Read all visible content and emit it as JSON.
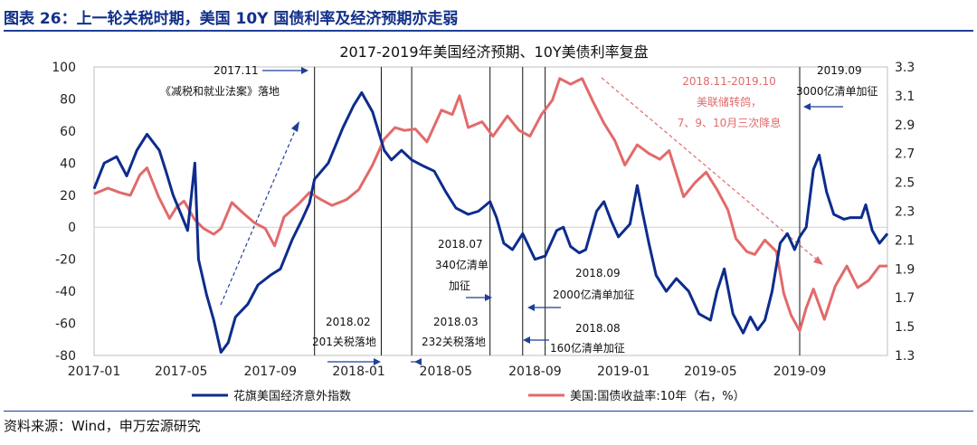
{
  "figure_label": "图表 26：上一轮关税时期，美国 10Y 国债利率及经济预期亦走弱",
  "source": "资料来源：Wind，申万宏源研究",
  "chart_data": {
    "type": "line",
    "title": "2017-2019年美国经济预期、10Y美债利率复盘",
    "x_range": [
      "2017-01-01",
      "2019-12-31"
    ],
    "x_tick_labels": [
      "2017-01",
      "2017-05",
      "2017-09",
      "2018-01",
      "2018-05",
      "2018-09",
      "2019-01",
      "2019-05",
      "2019-09"
    ],
    "x_tick_dates": [
      "2017-01-01",
      "2017-05-01",
      "2017-09-01",
      "2018-01-01",
      "2018-05-01",
      "2018-09-01",
      "2019-01-01",
      "2019-05-01",
      "2019-09-01"
    ],
    "y_left": {
      "min": -80,
      "max": 100,
      "ticks": [
        100,
        80,
        60,
        40,
        20,
        0,
        -20,
        -40,
        -60,
        -80
      ]
    },
    "y_right": {
      "min": 1.3,
      "max": 3.3,
      "ticks": [
        3.3,
        3.1,
        2.9,
        2.7,
        2.5,
        2.3,
        2.1,
        1.9,
        1.7,
        1.5,
        1.3
      ]
    },
    "series": [
      {
        "name": "花旗美国经济意外指数",
        "axis": "left",
        "color": "#0d2c8c",
        "points": [
          [
            "2017-01-01",
            24
          ],
          [
            "2017-01-15",
            40
          ],
          [
            "2017-02-01",
            44
          ],
          [
            "2017-02-15",
            32
          ],
          [
            "2017-03-01",
            48
          ],
          [
            "2017-03-15",
            58
          ],
          [
            "2017-04-01",
            48
          ],
          [
            "2017-04-10",
            35
          ],
          [
            "2017-04-20",
            20
          ],
          [
            "2017-05-01",
            8
          ],
          [
            "2017-05-10",
            -2
          ],
          [
            "2017-05-20",
            40
          ],
          [
            "2017-05-25",
            -20
          ],
          [
            "2017-06-05",
            -42
          ],
          [
            "2017-06-15",
            -58
          ],
          [
            "2017-06-25",
            -78
          ],
          [
            "2017-07-05",
            -72
          ],
          [
            "2017-07-15",
            -56
          ],
          [
            "2017-08-01",
            -48
          ],
          [
            "2017-08-15",
            -36
          ],
          [
            "2017-09-01",
            -30
          ],
          [
            "2017-09-15",
            -26
          ],
          [
            "2017-10-01",
            -8
          ],
          [
            "2017-10-15",
            5
          ],
          [
            "2017-10-25",
            15
          ],
          [
            "2017-11-01",
            30
          ],
          [
            "2017-11-20",
            40
          ],
          [
            "2017-12-10",
            62
          ],
          [
            "2017-12-25",
            76
          ],
          [
            "2018-01-05",
            84
          ],
          [
            "2018-01-20",
            72
          ],
          [
            "2018-02-05",
            48
          ],
          [
            "2018-02-15",
            42
          ],
          [
            "2018-03-01",
            48
          ],
          [
            "2018-03-15",
            42
          ],
          [
            "2018-04-01",
            38
          ],
          [
            "2018-04-15",
            35
          ],
          [
            "2018-05-01",
            22
          ],
          [
            "2018-05-15",
            12
          ],
          [
            "2018-06-01",
            8
          ],
          [
            "2018-06-15",
            10
          ],
          [
            "2018-07-01",
            16
          ],
          [
            "2018-07-10",
            6
          ],
          [
            "2018-07-20",
            -10
          ],
          [
            "2018-08-01",
            -14
          ],
          [
            "2018-08-15",
            -4
          ],
          [
            "2018-09-01",
            -20
          ],
          [
            "2018-09-15",
            -18
          ],
          [
            "2018-10-01",
            -2
          ],
          [
            "2018-10-10",
            0
          ],
          [
            "2018-10-20",
            -12
          ],
          [
            "2018-11-01",
            -16
          ],
          [
            "2018-11-10",
            -14
          ],
          [
            "2018-11-25",
            10
          ],
          [
            "2018-12-05",
            16
          ],
          [
            "2018-12-15",
            4
          ],
          [
            "2018-12-25",
            -6
          ],
          [
            "2019-01-10",
            2
          ],
          [
            "2019-01-20",
            26
          ],
          [
            "2019-01-27",
            10
          ],
          [
            "2019-02-05",
            -10
          ],
          [
            "2019-02-15",
            -30
          ],
          [
            "2019-03-01",
            -40
          ],
          [
            "2019-03-15",
            -32
          ],
          [
            "2019-04-01",
            -40
          ],
          [
            "2019-04-15",
            -54
          ],
          [
            "2019-05-01",
            -58
          ],
          [
            "2019-05-10",
            -40
          ],
          [
            "2019-05-20",
            -26
          ],
          [
            "2019-06-01",
            -54
          ],
          [
            "2019-06-15",
            -66
          ],
          [
            "2019-06-25",
            -56
          ],
          [
            "2019-07-05",
            -64
          ],
          [
            "2019-07-15",
            -58
          ],
          [
            "2019-07-25",
            -40
          ],
          [
            "2019-08-05",
            -10
          ],
          [
            "2019-08-15",
            -4
          ],
          [
            "2019-08-25",
            -14
          ],
          [
            "2019-09-01",
            -6
          ],
          [
            "2019-09-10",
            0
          ],
          [
            "2019-09-20",
            36
          ],
          [
            "2019-09-28",
            45
          ],
          [
            "2019-10-08",
            22
          ],
          [
            "2019-10-18",
            8
          ],
          [
            "2019-11-01",
            5
          ],
          [
            "2019-11-10",
            6
          ],
          [
            "2019-11-25",
            6
          ],
          [
            "2019-12-01",
            14
          ],
          [
            "2019-12-10",
            -2
          ],
          [
            "2019-12-20",
            -10
          ],
          [
            "2019-12-31",
            -4
          ]
        ]
      },
      {
        "name": "美国:国债收益率:10年（右，%）",
        "axis": "right",
        "color": "#e26a6a",
        "points": [
          [
            "2017-01-01",
            2.42
          ],
          [
            "2017-01-20",
            2.46
          ],
          [
            "2017-02-05",
            2.43
          ],
          [
            "2017-02-20",
            2.41
          ],
          [
            "2017-03-05",
            2.55
          ],
          [
            "2017-03-15",
            2.6
          ],
          [
            "2017-03-31",
            2.4
          ],
          [
            "2017-04-15",
            2.25
          ],
          [
            "2017-04-25",
            2.33
          ],
          [
            "2017-05-05",
            2.37
          ],
          [
            "2017-05-20",
            2.24
          ],
          [
            "2017-06-01",
            2.18
          ],
          [
            "2017-06-15",
            2.14
          ],
          [
            "2017-06-25",
            2.18
          ],
          [
            "2017-07-10",
            2.36
          ],
          [
            "2017-07-25",
            2.29
          ],
          [
            "2017-08-10",
            2.22
          ],
          [
            "2017-08-25",
            2.18
          ],
          [
            "2017-09-07",
            2.06
          ],
          [
            "2017-09-20",
            2.26
          ],
          [
            "2017-10-10",
            2.35
          ],
          [
            "2017-10-25",
            2.43
          ],
          [
            "2017-11-10",
            2.38
          ],
          [
            "2017-11-25",
            2.34
          ],
          [
            "2017-12-15",
            2.38
          ],
          [
            "2018-01-01",
            2.45
          ],
          [
            "2018-01-20",
            2.62
          ],
          [
            "2018-02-05",
            2.8
          ],
          [
            "2018-02-20",
            2.88
          ],
          [
            "2018-03-05",
            2.86
          ],
          [
            "2018-03-20",
            2.87
          ],
          [
            "2018-04-05",
            2.78
          ],
          [
            "2018-04-25",
            3.0
          ],
          [
            "2018-05-10",
            2.97
          ],
          [
            "2018-05-20",
            3.1
          ],
          [
            "2018-06-01",
            2.88
          ],
          [
            "2018-06-20",
            2.92
          ],
          [
            "2018-07-05",
            2.82
          ],
          [
            "2018-07-25",
            2.96
          ],
          [
            "2018-08-10",
            2.86
          ],
          [
            "2018-08-25",
            2.82
          ],
          [
            "2018-09-10",
            2.97
          ],
          [
            "2018-09-25",
            3.07
          ],
          [
            "2018-10-05",
            3.22
          ],
          [
            "2018-10-20",
            3.18
          ],
          [
            "2018-11-05",
            3.22
          ],
          [
            "2018-11-20",
            3.06
          ],
          [
            "2018-12-05",
            2.91
          ],
          [
            "2018-12-20",
            2.79
          ],
          [
            "2019-01-03",
            2.62
          ],
          [
            "2019-01-20",
            2.76
          ],
          [
            "2019-02-05",
            2.7
          ],
          [
            "2019-02-20",
            2.66
          ],
          [
            "2019-03-05",
            2.72
          ],
          [
            "2019-03-25",
            2.4
          ],
          [
            "2019-04-10",
            2.5
          ],
          [
            "2019-04-25",
            2.57
          ],
          [
            "2019-05-10",
            2.45
          ],
          [
            "2019-05-25",
            2.31
          ],
          [
            "2019-06-05",
            2.11
          ],
          [
            "2019-06-20",
            2.02
          ],
          [
            "2019-07-01",
            2.0
          ],
          [
            "2019-07-15",
            2.1
          ],
          [
            "2019-07-31",
            2.02
          ],
          [
            "2019-08-10",
            1.73
          ],
          [
            "2019-08-20",
            1.58
          ],
          [
            "2019-09-01",
            1.47
          ],
          [
            "2019-09-10",
            1.63
          ],
          [
            "2019-09-20",
            1.76
          ],
          [
            "2019-10-05",
            1.55
          ],
          [
            "2019-10-20",
            1.78
          ],
          [
            "2019-11-05",
            1.92
          ],
          [
            "2019-11-20",
            1.77
          ],
          [
            "2019-12-05",
            1.82
          ],
          [
            "2019-12-20",
            1.92
          ],
          [
            "2019-12-31",
            1.92
          ]
        ]
      }
    ],
    "event_lines": [
      {
        "date": "2017-11-01",
        "label": "2017.11 《减税和就业法案》落地"
      },
      {
        "date": "2018-02-01",
        "label": "2018.02 201关税落地"
      },
      {
        "date": "2018-03-15",
        "label": "2018.03 232关税落地"
      },
      {
        "date": "2018-07-01",
        "label": "2018.07 340亿清单加征"
      },
      {
        "date": "2018-08-15",
        "label": "2018.08 160亿清单加征"
      },
      {
        "date": "2018-09-15",
        "label": "2018.09 2000亿清单加征"
      },
      {
        "date": "2019-09-01",
        "label": "2019.09 3000亿清单加征"
      }
    ],
    "annotations": {
      "tcja_date": "2017.11",
      "tcja_text": "《减税和就业法案》落地",
      "s201_date": "2018.02",
      "s201_text": "201关税落地",
      "s232_date": "2018.03",
      "s232_text": "232关税落地",
      "t340_date": "2018.07",
      "t340_l1": "340亿清单",
      "t340_l2": "加征",
      "t2000_date": "2018.09",
      "t2000_text": "2000亿清单加征",
      "t160_date": "2018.08",
      "t160_text": "160亿清单加征",
      "t3000_date": "2019.09",
      "t3000_text": "3000亿清单加征",
      "fed_l1": "2018.11-2019.10",
      "fed_l2": "美联储转鸽，",
      "fed_l3": "7、9、10月三次降息"
    },
    "legend": [
      "花旗美国经济意外指数",
      "美国:国债收益率:10年（右，%）"
    ]
  }
}
